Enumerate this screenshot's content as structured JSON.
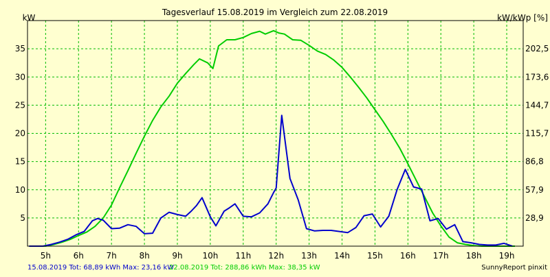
{
  "chart_data": {
    "type": "line",
    "title": "Tagesverlauf 15.08.2019 im Vergleich zum 22.08.2019",
    "ylabel": "kW",
    "ylabel_right": "kW/kWp [%]",
    "ylim": [
      0,
      40
    ],
    "xlim": [
      4.45,
      19.5
    ],
    "grid": true,
    "x_ticks": [
      {
        "value": 5,
        "label": "5h"
      },
      {
        "value": 6,
        "label": "6h"
      },
      {
        "value": 7,
        "label": "7h"
      },
      {
        "value": 8,
        "label": "8h"
      },
      {
        "value": 9,
        "label": "9h"
      },
      {
        "value": 10,
        "label": "10h"
      },
      {
        "value": 11,
        "label": "11h"
      },
      {
        "value": 12,
        "label": "12h"
      },
      {
        "value": 13,
        "label": "13h"
      },
      {
        "value": 14,
        "label": "14h"
      },
      {
        "value": 15,
        "label": "15h"
      },
      {
        "value": 16,
        "label": "16h"
      },
      {
        "value": 17,
        "label": "17h"
      },
      {
        "value": 18,
        "label": "18h"
      },
      {
        "value": 19,
        "label": "19h"
      }
    ],
    "y_ticks_left": [
      {
        "value": 5,
        "label": "5"
      },
      {
        "value": 10,
        "label": "10"
      },
      {
        "value": 15,
        "label": "15"
      },
      {
        "value": 20,
        "label": "20"
      },
      {
        "value": 25,
        "label": "25"
      },
      {
        "value": 30,
        "label": "30"
      },
      {
        "value": 35,
        "label": "35"
      }
    ],
    "y_ticks_right": [
      {
        "value": 5,
        "label": "28,9"
      },
      {
        "value": 10,
        "label": "57,9"
      },
      {
        "value": 15,
        "label": "86,8"
      },
      {
        "value": 20,
        "label": "115,7"
      },
      {
        "value": 25,
        "label": "144,7"
      },
      {
        "value": 30,
        "label": "173,6"
      },
      {
        "value": 35,
        "label": "202,5"
      }
    ],
    "series": [
      {
        "name": "15.08.2019",
        "color": "#0000cc",
        "x": [
          4.5,
          4.92,
          5.17,
          5.42,
          5.67,
          5.92,
          6.17,
          6.42,
          6.58,
          6.75,
          7.0,
          7.25,
          7.5,
          7.75,
          8.0,
          8.25,
          8.5,
          8.75,
          9.0,
          9.25,
          9.42,
          9.58,
          9.75,
          10.0,
          10.17,
          10.42,
          10.58,
          10.75,
          11.0,
          11.25,
          11.5,
          11.75,
          11.92,
          12.0,
          12.17,
          12.42,
          12.67,
          12.92,
          13.17,
          13.42,
          13.67,
          13.92,
          14.17,
          14.42,
          14.67,
          14.92,
          15.17,
          15.42,
          15.67,
          15.92,
          16.17,
          16.42,
          16.67,
          16.92,
          17.17,
          17.42,
          17.67,
          17.92,
          18.17,
          18.42,
          18.67,
          18.92,
          19.17
        ],
        "y": [
          0,
          0,
          0.3,
          0.7,
          1.2,
          2.0,
          2.6,
          4.5,
          4.9,
          4.6,
          3.1,
          3.2,
          3.8,
          3.5,
          2.2,
          2.3,
          5.0,
          6.0,
          5.6,
          5.3,
          6.2,
          7.2,
          8.6,
          5.2,
          3.6,
          6.2,
          6.8,
          7.5,
          5.3,
          5.2,
          5.9,
          7.5,
          9.5,
          10.3,
          23.2,
          12.0,
          8.2,
          3.1,
          2.7,
          2.8,
          2.8,
          2.6,
          2.4,
          3.3,
          5.4,
          5.7,
          3.4,
          5.3,
          10.0,
          13.6,
          10.5,
          10.1,
          4.5,
          4.9,
          3.0,
          3.8,
          0.8,
          0.6,
          0.3,
          0.2,
          0.2,
          0.5,
          0
        ]
      },
      {
        "name": "22.08.2019",
        "color": "#00cc00",
        "x": [
          4.5,
          5.0,
          5.25,
          5.5,
          5.75,
          6.0,
          6.25,
          6.5,
          6.75,
          7.0,
          7.25,
          7.5,
          7.75,
          8.0,
          8.25,
          8.5,
          8.75,
          9.0,
          9.25,
          9.5,
          9.67,
          9.92,
          10.08,
          10.25,
          10.5,
          10.75,
          11.0,
          11.25,
          11.5,
          11.67,
          11.92,
          12.08,
          12.25,
          12.5,
          12.75,
          13.0,
          13.25,
          13.5,
          13.75,
          14.0,
          14.25,
          14.5,
          14.75,
          15.0,
          15.25,
          15.5,
          15.75,
          16.0,
          16.25,
          16.5,
          16.75,
          17.0,
          17.25,
          17.5,
          17.75,
          18.0,
          18.25,
          18.5,
          18.75,
          19.0,
          19.25
        ],
        "y": [
          0,
          0,
          0.3,
          0.7,
          1.2,
          1.9,
          2.5,
          3.5,
          5.0,
          7.3,
          10.4,
          13.4,
          16.5,
          19.5,
          22.3,
          24.7,
          26.6,
          28.9,
          30.6,
          32.2,
          33.2,
          32.5,
          31.5,
          35.5,
          36.6,
          36.6,
          37.0,
          37.7,
          38.1,
          37.6,
          38.2,
          37.8,
          37.6,
          36.6,
          36.5,
          35.6,
          34.6,
          34.0,
          33.0,
          31.7,
          30.0,
          28.2,
          26.3,
          24.2,
          22.1,
          19.8,
          17.4,
          14.6,
          11.7,
          8.8,
          5.9,
          3.6,
          1.6,
          0.6,
          0.3,
          0.1,
          0,
          0,
          0,
          0,
          0
        ]
      }
    ],
    "footer": {
      "left_blue": "15.08.2019 Tot: 68,89 kWh Max: 23,16 kW",
      "left_green": "22.08.2019 Tot: 288,86 kWh Max: 38,35 kW",
      "right": "SunnyReport pinxit"
    }
  }
}
